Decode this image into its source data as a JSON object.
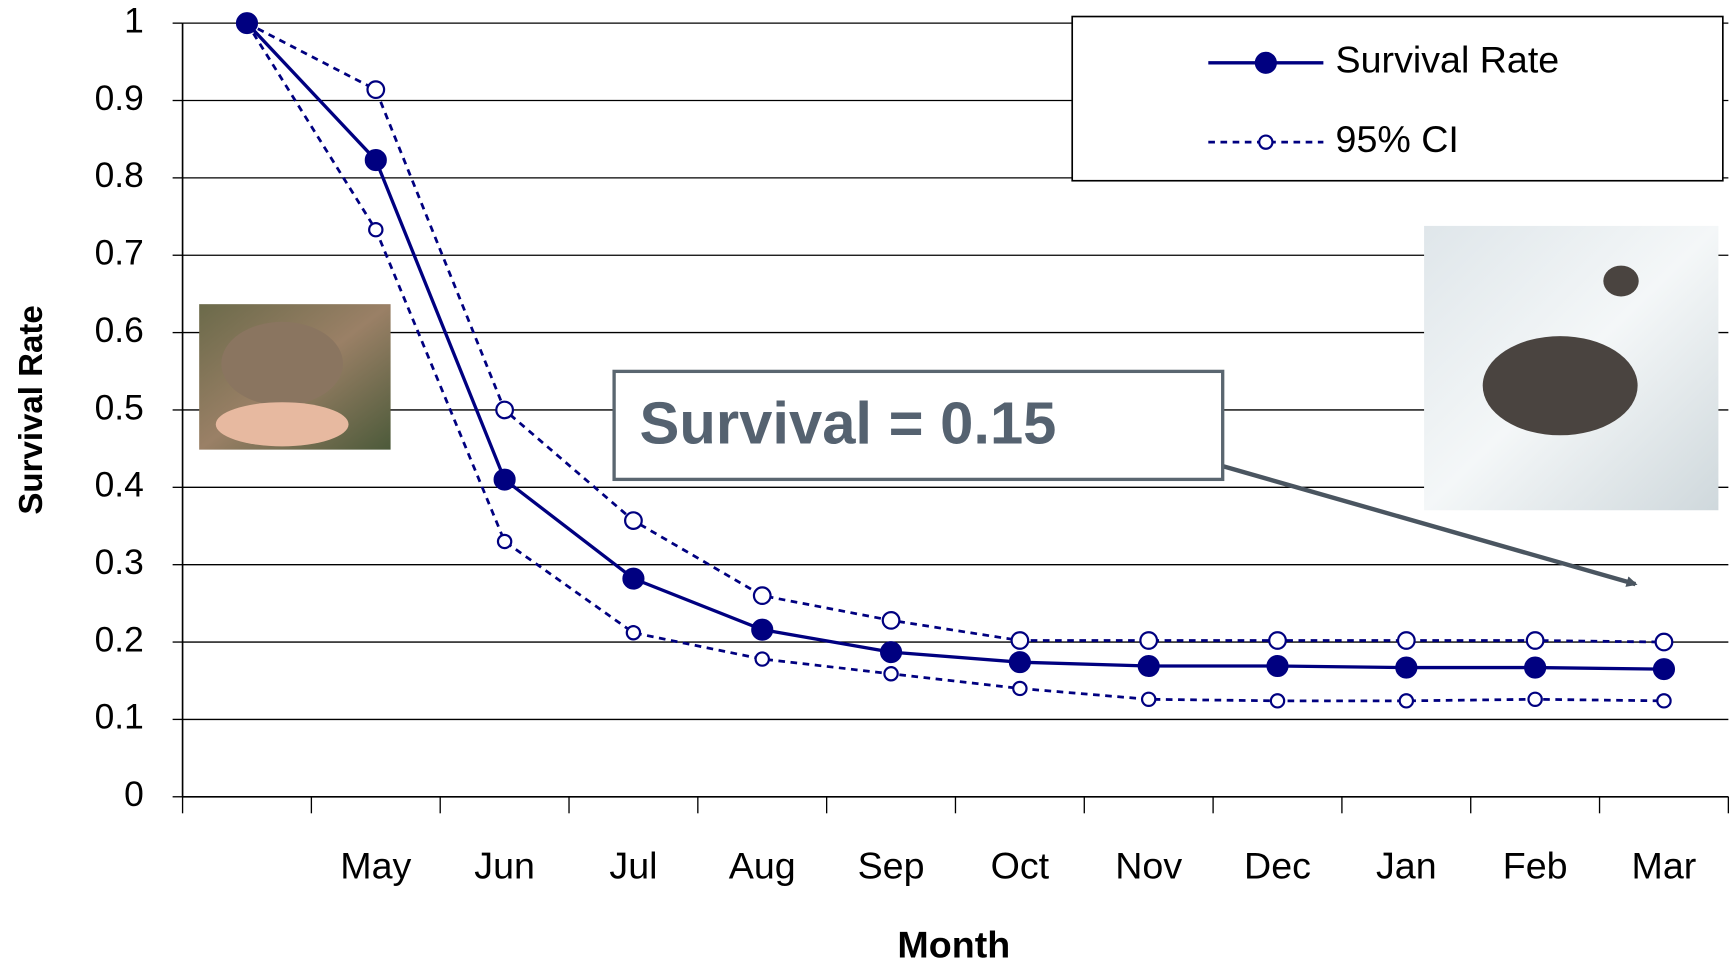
{
  "chart_data": {
    "type": "line",
    "x_label": "Month",
    "y_label": "Survival Rate",
    "categories": [
      null,
      "May",
      "Jun",
      "Jul",
      "Aug",
      "Sep",
      "Oct",
      "Nov",
      "Dec",
      "Jan",
      "Feb",
      "Mar"
    ],
    "series": [
      {
        "name": "Survival Rate",
        "color": "#000080",
        "values": [
          1,
          0.823,
          0.41,
          0.282,
          0.216,
          0.187,
          0.174,
          0.169,
          0.169,
          0.167,
          0.167,
          0.165
        ]
      },
      {
        "name": "95% CI",
        "color": "#000080",
        "upper": [
          1,
          0.914,
          0.5,
          0.357,
          0.26,
          0.228,
          0.202,
          0.202,
          0.202,
          0.202,
          0.202,
          0.2
        ],
        "lower": [
          1,
          0.733,
          0.33,
          0.212,
          0.178,
          0.159,
          0.14,
          0.126,
          0.124,
          0.124,
          0.126,
          0.124
        ]
      }
    ],
    "ylim": [
      0,
      1
    ],
    "yticks": [
      0,
      0.1,
      0.2,
      0.3,
      0.4,
      0.5,
      0.6,
      0.7,
      0.8,
      0.9,
      1
    ],
    "grid": true,
    "legend": "top-right",
    "annotation": "Survival = 0.15"
  }
}
